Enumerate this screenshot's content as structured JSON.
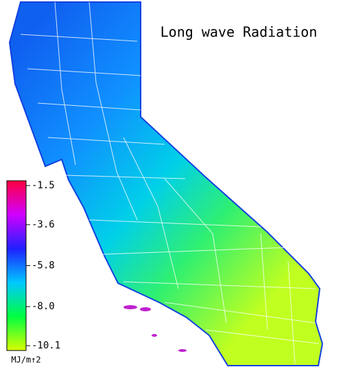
{
  "title": "Long wave Radiation",
  "colorbar": {
    "unit": "MJ/m↑2",
    "lim": [
      -1.5,
      -10.1
    ],
    "ticks": [
      -1.5,
      -3.6,
      -5.8,
      {
        "value": -8,
        "label": "-8.0"
      },
      -10.1
    ],
    "colors": [
      "#ff0040",
      "#d000ff",
      "#2020ff",
      "#00c8ff",
      "#00ff40",
      "#d8ff00"
    ]
  }
}
